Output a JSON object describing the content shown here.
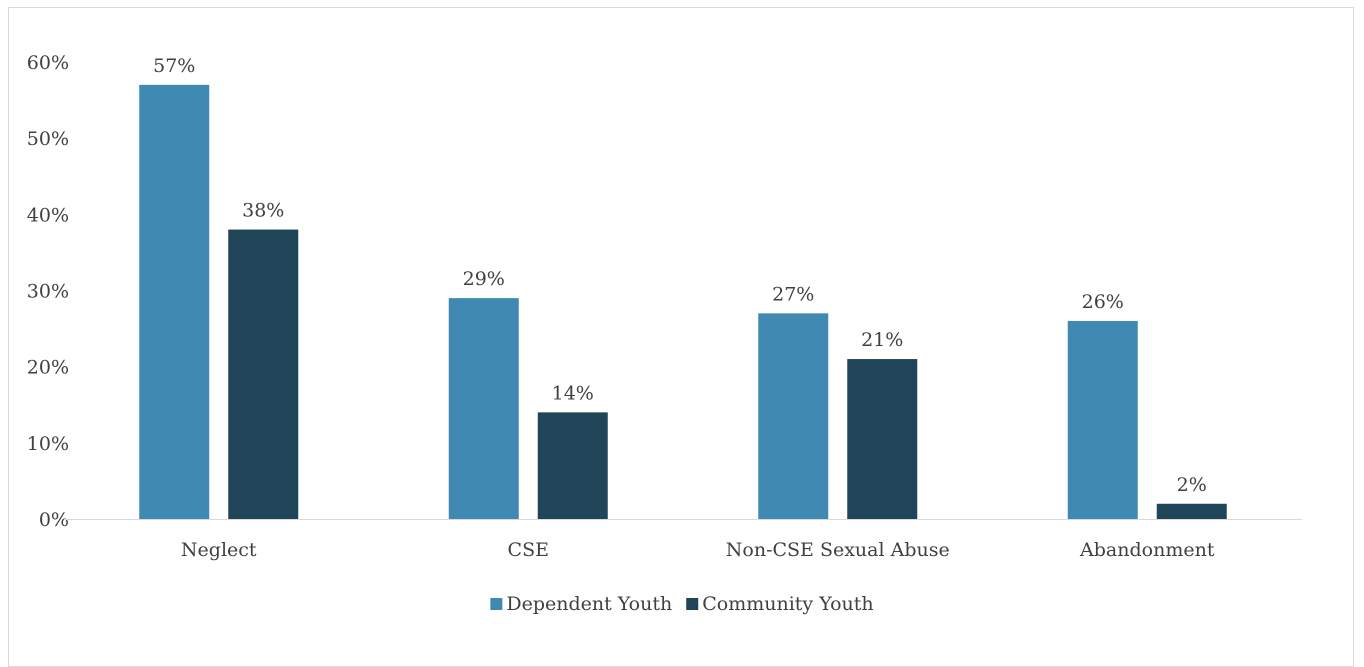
{
  "chart_data": {
    "type": "bar",
    "title": "",
    "xlabel": "",
    "ylabel": "",
    "categories": [
      "Neglect",
      "CSE",
      "Non-CSE Sexual Abuse",
      "Abandonment"
    ],
    "series": [
      {
        "name": "Dependent Youth",
        "values": [
          57,
          29,
          27,
          26
        ],
        "color": "#3f89b3"
      },
      {
        "name": "Community Youth",
        "values": [
          38,
          14,
          21,
          2
        ],
        "color": "#204458"
      }
    ],
    "ylim": [
      0,
      60
    ],
    "yticks": [
      0,
      10,
      20,
      30,
      40,
      50,
      60
    ],
    "value_format": "percent",
    "grid": false,
    "legend_position": "bottom"
  }
}
